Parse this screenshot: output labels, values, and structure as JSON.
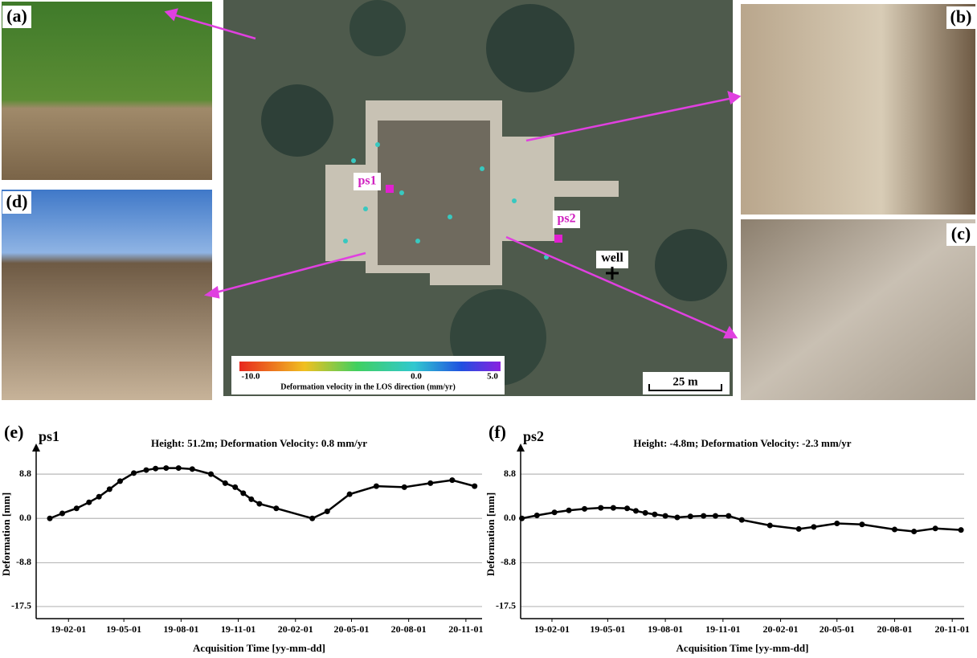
{
  "panels": [
    "(a)",
    "(b)",
    "(c)",
    "(d)"
  ],
  "map": {
    "markers": [
      "ps1",
      "ps2",
      "well"
    ],
    "scale_bar": "25 m",
    "colorbar": {
      "ticks": [
        "-10.0",
        "0.0",
        "5.0"
      ],
      "label": "Deformation velocity in the LOS direction (mm/yr)"
    }
  },
  "chart_data": [
    {
      "type": "line",
      "panel_label": "(e)",
      "title": "ps1",
      "subtitle": "Height: 51.2m; Deformation Velocity: 0.8 mm/yr",
      "xlabel": "Acquisition Time [yy-mm-dd]",
      "ylabel": "Deformation [mm]",
      "x": [
        "2019-01-02",
        "2019-01-22",
        "2019-02-14",
        "2019-03-06",
        "2019-03-22",
        "2019-04-08",
        "2019-04-25",
        "2019-05-17",
        "2019-06-06",
        "2019-06-21",
        "2019-07-08",
        "2019-07-28",
        "2019-08-19",
        "2019-09-18",
        "2019-10-11",
        "2019-10-27",
        "2019-11-09",
        "2019-11-22",
        "2019-12-05",
        "2020-01-01",
        "2020-02-28",
        "2020-03-23",
        "2020-04-28",
        "2020-06-10",
        "2020-07-25",
        "2020-09-05",
        "2020-10-10",
        "2020-11-15"
      ],
      "series": [
        {
          "name": "ps1",
          "color": "#000000",
          "values": [
            0.0,
            1.0,
            2.0,
            3.2,
            4.3,
            5.8,
            7.4,
            9.0,
            9.6,
            9.9,
            10.0,
            10.0,
            9.8,
            8.8,
            7.0,
            6.2,
            5.0,
            3.8,
            2.9,
            2.0,
            0.0,
            1.4,
            4.8,
            6.4,
            6.2,
            7.0,
            7.6,
            6.4
          ]
        }
      ],
      "xlim": [
        "2018-12-11",
        "2020-11-27"
      ],
      "xticks": [
        {
          "value": "2019-02-01",
          "label": "19-02-01"
        },
        {
          "value": "2019-05-01",
          "label": "19-05-01"
        },
        {
          "value": "2019-08-01",
          "label": "19-08-01"
        },
        {
          "value": "2019-11-01",
          "label": "19-11-01"
        },
        {
          "value": "2020-02-01",
          "label": "20-02-01"
        },
        {
          "value": "2020-05-01",
          "label": "20-05-01"
        },
        {
          "value": "2020-08-01",
          "label": "20-08-01"
        },
        {
          "value": "2020-11-01",
          "label": "20-11-01"
        }
      ],
      "ylim": [
        -19.9,
        13.6
      ],
      "yticks": [
        -17.5,
        -8.8,
        {
          "value": 0,
          "label": "0.0"
        },
        8.8
      ],
      "grid": true
    },
    {
      "type": "line",
      "panel_label": "(f)",
      "title": "ps2",
      "subtitle": "Height: -4.8m; Deformation Velocity: -2.3 mm/yr",
      "xlabel": "Acquisition Time [yy-mm-dd]",
      "ylabel": "Deformation [mm]",
      "x": [
        "2018-12-15",
        "2019-01-08",
        "2019-02-05",
        "2019-02-28",
        "2019-03-25",
        "2019-04-20",
        "2019-05-10",
        "2019-06-01",
        "2019-06-15",
        "2019-06-30",
        "2019-07-15",
        "2019-08-01",
        "2019-08-20",
        "2019-09-10",
        "2019-10-01",
        "2019-10-20",
        "2019-11-10",
        "2019-12-01",
        "2020-01-15",
        "2020-03-01",
        "2020-03-25",
        "2020-05-01",
        "2020-06-10",
        "2020-08-01",
        "2020-09-01",
        "2020-10-05",
        "2020-11-15"
      ],
      "series": [
        {
          "name": "ps2",
          "color": "#000000",
          "values": [
            0.0,
            0.6,
            1.2,
            1.6,
            1.9,
            2.1,
            2.1,
            2.0,
            1.5,
            1.1,
            0.8,
            0.5,
            0.2,
            0.4,
            0.5,
            0.5,
            0.5,
            -0.3,
            -1.4,
            -2.1,
            -1.7,
            -1.0,
            -1.2,
            -2.2,
            -2.6,
            -2.0,
            -2.3
          ]
        }
      ],
      "xlim": [
        "2018-12-13",
        "2020-11-20"
      ],
      "xticks": [
        {
          "value": "2019-02-01",
          "label": "19-02-01"
        },
        {
          "value": "2019-05-01",
          "label": "19-05-01"
        },
        {
          "value": "2019-08-01",
          "label": "19-08-01"
        },
        {
          "value": "2019-11-01",
          "label": "19-11-01"
        },
        {
          "value": "2020-02-01",
          "label": "20-02-01"
        },
        {
          "value": "2020-05-01",
          "label": "20-05-01"
        },
        {
          "value": "2020-08-01",
          "label": "20-08-01"
        },
        {
          "value": "2020-11-01",
          "label": "20-11-01"
        }
      ],
      "ylim": [
        -19.9,
        13.6
      ],
      "yticks": [
        -17.5,
        -8.8,
        {
          "value": 0,
          "label": "0.0"
        },
        8.8
      ],
      "grid": true
    }
  ]
}
